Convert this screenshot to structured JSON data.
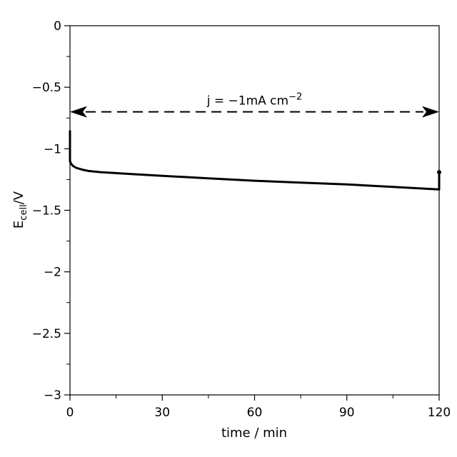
{
  "chart_data": {
    "type": "line",
    "xlabel": "time / min",
    "ylabel_main": "E",
    "ylabel_sub": "cell",
    "ylabel_rest": "/V",
    "xlim": [
      0,
      120
    ],
    "ylim": [
      -3,
      0
    ],
    "x_ticks": [
      0,
      30,
      60,
      90,
      120
    ],
    "x_tick_labels": [
      "0",
      "30",
      "60",
      "90",
      "120"
    ],
    "y_ticks": [
      0,
      -0.5,
      -1,
      -1.5,
      -2,
      -2.5,
      -3
    ],
    "y_tick_labels": [
      "0",
      "−0.5",
      "−1",
      "−1.5",
      "−2",
      "−2.5",
      "−3"
    ],
    "grid": false,
    "annotation": {
      "text_main": "j = −1mA cm",
      "text_sup": "−2",
      "arrow_x_range": [
        0,
        120
      ],
      "arrow_y": -0.7
    },
    "series": [
      {
        "x": [
          0,
          0,
          0.3,
          1,
          2,
          4,
          6,
          10,
          20,
          30,
          45,
          60,
          75,
          90,
          105,
          119.8,
          120,
          120
        ],
        "y": [
          -0.85,
          -1.1,
          -1.12,
          -1.14,
          -1.155,
          -1.17,
          -1.18,
          -1.19,
          -1.205,
          -1.22,
          -1.24,
          -1.26,
          -1.275,
          -1.29,
          -1.31,
          -1.33,
          -1.33,
          -1.19
        ]
      }
    ]
  }
}
